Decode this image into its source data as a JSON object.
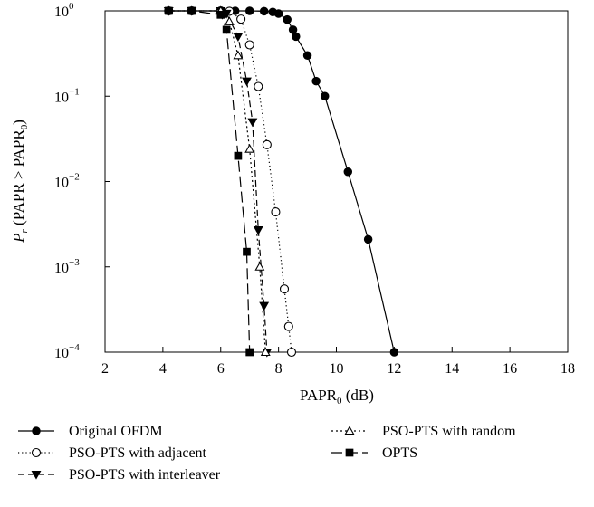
{
  "chart_data": {
    "type": "line",
    "xlabel": "PAPR",
    "xlabel_sub": "0",
    "xlabel_unit": " (dB)",
    "ylabel_prefix": "P",
    "ylabel_prefix_sub": "r",
    "ylabel_body": " (PAPR > PAPR",
    "ylabel_body_sub": "0",
    "ylabel_suffix": ")",
    "xlim": [
      2,
      18
    ],
    "ylim": [
      0.0001,
      1
    ],
    "yscale": "log",
    "grid": false,
    "x_ticks": [
      "2",
      "4",
      "6",
      "8",
      "10",
      "12",
      "14",
      "16",
      "18"
    ],
    "y_ticks": [
      {
        "base": "10",
        "exp": "0"
      },
      {
        "base": "10",
        "exp": "−1"
      },
      {
        "base": "10",
        "exp": "−2"
      },
      {
        "base": "10",
        "exp": "−3"
      },
      {
        "base": "10",
        "exp": "−4"
      }
    ],
    "legend_position": "bottom",
    "series": [
      {
        "name": "Original OFDM",
        "line": "solid",
        "marker": "filled-circle",
        "color": "#000000",
        "points": [
          [
            4.2,
            1
          ],
          [
            5,
            1
          ],
          [
            6,
            1
          ],
          [
            6.5,
            1
          ],
          [
            7,
            1
          ],
          [
            7.5,
            0.99
          ],
          [
            7.8,
            0.97
          ],
          [
            8.0,
            0.93
          ],
          [
            8.3,
            0.79
          ],
          [
            8.5,
            0.6
          ],
          [
            8.6,
            0.5
          ],
          [
            9.0,
            0.3
          ],
          [
            9.3,
            0.15
          ],
          [
            9.6,
            0.1
          ],
          [
            10.4,
            0.013
          ],
          [
            11.1,
            0.0021
          ],
          [
            12.0,
            0.0001
          ]
        ]
      },
      {
        "name": "PSO-PTS with adjacent",
        "line": "dotted",
        "marker": "open-circle",
        "color": "#000000",
        "points": [
          [
            4.2,
            1
          ],
          [
            5,
            1
          ],
          [
            6,
            1
          ],
          [
            6.3,
            0.99
          ],
          [
            6.7,
            0.8
          ],
          [
            7.0,
            0.4
          ],
          [
            7.3,
            0.13
          ],
          [
            7.6,
            0.027
          ],
          [
            7.9,
            0.0044
          ],
          [
            8.2,
            0.00055
          ],
          [
            8.35,
            0.0002
          ],
          [
            8.45,
            0.0001
          ]
        ]
      },
      {
        "name": "PSO-PTS with interleaver",
        "line": "dashed",
        "marker": "filled-triangle-down",
        "color": "#000000",
        "points": [
          [
            4.2,
            1
          ],
          [
            5,
            1
          ],
          [
            6,
            1
          ],
          [
            6.2,
            0.93
          ],
          [
            6.6,
            0.5
          ],
          [
            6.9,
            0.15
          ],
          [
            7.1,
            0.05
          ],
          [
            7.3,
            0.0027
          ],
          [
            7.5,
            0.00035
          ],
          [
            7.6,
            0.0001
          ]
        ]
      },
      {
        "name": "PSO-PTS with random",
        "line": "dashdot",
        "marker": "open-triangle-up",
        "color": "#000000",
        "points": [
          [
            4.2,
            1
          ],
          [
            5,
            1
          ],
          [
            6,
            1
          ],
          [
            6.3,
            0.75
          ],
          [
            6.6,
            0.3
          ],
          [
            7.0,
            0.024
          ],
          [
            7.35,
            0.001
          ],
          [
            7.55,
            0.0001
          ]
        ]
      },
      {
        "name": "OPTS",
        "line": "longdash",
        "marker": "filled-square",
        "color": "#000000",
        "points": [
          [
            4.2,
            1
          ],
          [
            5,
            1
          ],
          [
            6,
            0.9
          ],
          [
            6.2,
            0.6
          ],
          [
            6.6,
            0.02
          ],
          [
            6.9,
            0.0015
          ],
          [
            7.0,
            0.0001
          ]
        ]
      }
    ]
  }
}
